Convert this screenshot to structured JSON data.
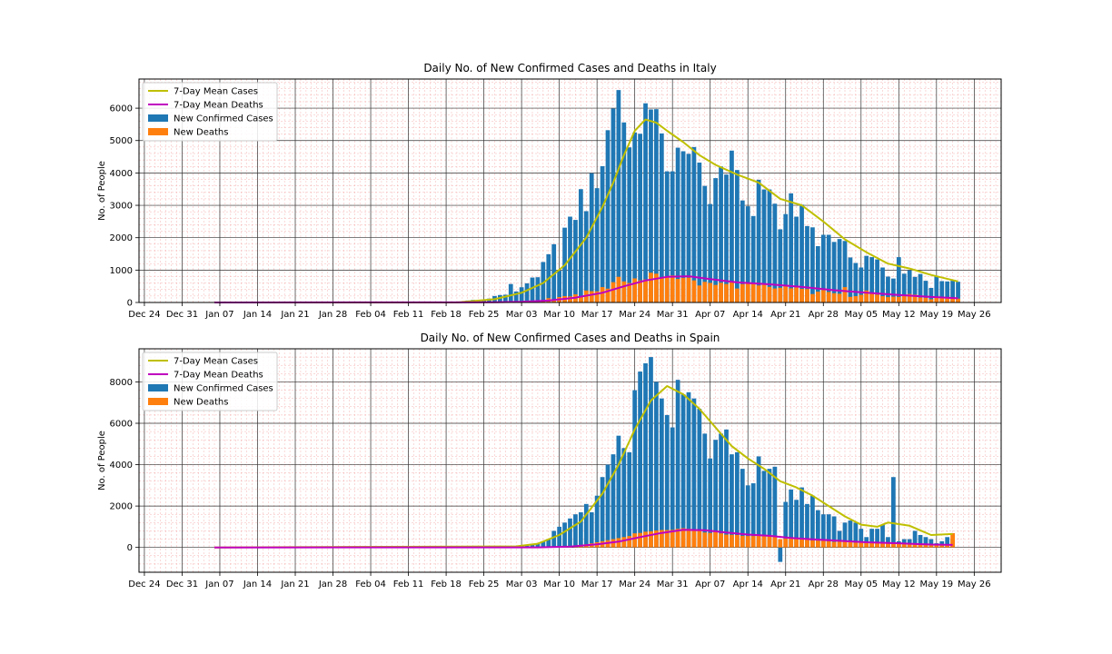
{
  "colors": {
    "cases_bar": "#1f77b4",
    "deaths_bar": "#ff7f0e",
    "mean_cases": "#bfbf00",
    "mean_deaths": "#bf00bf",
    "major_grid": "#333333",
    "minor_grid": "#f08080"
  },
  "chart_data": [
    {
      "type": "bar",
      "title": "Daily No. of New Confirmed Cases and Deaths in Italy",
      "xlabel": "",
      "ylabel": "No. of People",
      "xlim": [
        "2019-12-23",
        "2020-05-31"
      ],
      "ylim": [
        0,
        6900
      ],
      "y_ticks": [
        0,
        1000,
        2000,
        3000,
        4000,
        5000,
        6000
      ],
      "x_tick_labels": [
        "Dec 24",
        "Dec 31",
        "Jan 07",
        "Jan 14",
        "Jan 21",
        "Jan 28",
        "Feb 04",
        "Feb 11",
        "Feb 18",
        "Feb 25",
        "Mar 03",
        "Mar 10",
        "Mar 17",
        "Mar 24",
        "Mar 31",
        "Apr 07",
        "Apr 14",
        "Apr 21",
        "Apr 28",
        "May 05",
        "May 12",
        "May 19",
        "May 26"
      ],
      "grid": true,
      "legend_position": "top-left",
      "legend": [
        "7-Day Mean Cases",
        "7-Day Mean Deaths",
        "New Confirmed Cases",
        "New Deaths"
      ],
      "dates": [
        "2020-02-21",
        "2020-02-22",
        "2020-02-23",
        "2020-02-24",
        "2020-02-25",
        "2020-02-26",
        "2020-02-27",
        "2020-02-28",
        "2020-02-29",
        "2020-03-01",
        "2020-03-02",
        "2020-03-03",
        "2020-03-04",
        "2020-03-05",
        "2020-03-06",
        "2020-03-07",
        "2020-03-08",
        "2020-03-09",
        "2020-03-10",
        "2020-03-11",
        "2020-03-12",
        "2020-03-13",
        "2020-03-14",
        "2020-03-15",
        "2020-03-16",
        "2020-03-17",
        "2020-03-18",
        "2020-03-19",
        "2020-03-20",
        "2020-03-21",
        "2020-03-22",
        "2020-03-23",
        "2020-03-24",
        "2020-03-25",
        "2020-03-26",
        "2020-03-27",
        "2020-03-28",
        "2020-03-29",
        "2020-03-30",
        "2020-03-31",
        "2020-04-01",
        "2020-04-02",
        "2020-04-03",
        "2020-04-04",
        "2020-04-05",
        "2020-04-06",
        "2020-04-07",
        "2020-04-08",
        "2020-04-09",
        "2020-04-10",
        "2020-04-11",
        "2020-04-12",
        "2020-04-13",
        "2020-04-14",
        "2020-04-15",
        "2020-04-16",
        "2020-04-17",
        "2020-04-18",
        "2020-04-19",
        "2020-04-20",
        "2020-04-21",
        "2020-04-22",
        "2020-04-23",
        "2020-04-24",
        "2020-04-25",
        "2020-04-26",
        "2020-04-27",
        "2020-04-28",
        "2020-04-29",
        "2020-04-30",
        "2020-05-01",
        "2020-05-02",
        "2020-05-03",
        "2020-05-04",
        "2020-05-05",
        "2020-05-06",
        "2020-05-07",
        "2020-05-08",
        "2020-05-09",
        "2020-05-10",
        "2020-05-11",
        "2020-05-12",
        "2020-05-13",
        "2020-05-14",
        "2020-05-15",
        "2020-05-16",
        "2020-05-17",
        "2020-05-18",
        "2020-05-19",
        "2020-05-20",
        "2020-05-21",
        "2020-05-22",
        "2020-05-23"
      ],
      "new_cases": [
        20,
        60,
        80,
        60,
        90,
        120,
        200,
        230,
        240,
        570,
        340,
        470,
        590,
        770,
        780,
        1250,
        1490,
        1800,
        980,
        2310,
        2650,
        2550,
        3500,
        2820,
        3990,
        3530,
        4210,
        5320,
        5990,
        6560,
        5560,
        4790,
        5250,
        5210,
        6150,
        5960,
        5970,
        5220,
        4050,
        4050,
        4780,
        4670,
        4590,
        4800,
        4320,
        3600,
        3040,
        3840,
        4200,
        3950,
        4690,
        4090,
        3150,
        2970,
        2670,
        3790,
        3490,
        3490,
        3050,
        2260,
        2730,
        3370,
        2650,
        3020,
        2360,
        2320,
        1740,
        2090,
        2090,
        1870,
        1960,
        1900,
        1390,
        1220,
        1080,
        1440,
        1400,
        1330,
        1080,
        800,
        740,
        1400,
        890,
        990,
        790,
        880,
        670,
        450,
        810,
        660,
        650,
        670,
        640
      ],
      "new_deaths": [
        1,
        2,
        3,
        4,
        5,
        8,
        6,
        10,
        8,
        14,
        18,
        27,
        28,
        41,
        49,
        36,
        133,
        97,
        168,
        196,
        188,
        250,
        175,
        368,
        349,
        345,
        475,
        427,
        627,
        793,
        651,
        601,
        743,
        683,
        712,
        919,
        889,
        756,
        812,
        837,
        727,
        760,
        766,
        681,
        525,
        636,
        604,
        542,
        610,
        570,
        619,
        431,
        566,
        602,
        578,
        525,
        575,
        482,
        433,
        454,
        534,
        437,
        464,
        420,
        415,
        260,
        333,
        382,
        323,
        285,
        269,
        474,
        174,
        195,
        236,
        369,
        274,
        243,
        194,
        165,
        179,
        172,
        195,
        262,
        242,
        153,
        145,
        99,
        162,
        161,
        156,
        130,
        119
      ],
      "series": [
        {
          "name": "7-Day Mean Cases",
          "x": [
            "2020-01-06",
            "2020-02-20",
            "2020-02-27",
            "2020-03-03",
            "2020-03-07",
            "2020-03-11",
            "2020-03-15",
            "2020-03-18",
            "2020-03-20",
            "2020-03-22",
            "2020-03-24",
            "2020-03-26",
            "2020-03-28",
            "2020-03-30",
            "2020-04-02",
            "2020-04-05",
            "2020-04-08",
            "2020-04-12",
            "2020-04-16",
            "2020-04-20",
            "2020-04-24",
            "2020-04-28",
            "2020-05-02",
            "2020-05-06",
            "2020-05-10",
            "2020-05-14",
            "2020-05-18",
            "2020-05-23"
          ],
          "values": [
            0,
            0,
            100,
            300,
            600,
            1150,
            2000,
            2950,
            3700,
            4550,
            5300,
            5650,
            5550,
            5300,
            4950,
            4550,
            4250,
            3950,
            3700,
            3200,
            3000,
            2500,
            1950,
            1550,
            1200,
            1050,
            850,
            650
          ]
        },
        {
          "name": "7-Day Mean Deaths",
          "x": [
            "2020-01-06",
            "2020-02-27",
            "2020-03-03",
            "2020-03-08",
            "2020-03-13",
            "2020-03-18",
            "2020-03-22",
            "2020-03-26",
            "2020-03-30",
            "2020-04-03",
            "2020-04-07",
            "2020-04-12",
            "2020-04-18",
            "2020-04-24",
            "2020-04-30",
            "2020-05-06",
            "2020-05-12",
            "2020-05-18",
            "2020-05-23"
          ],
          "values": [
            0,
            5,
            20,
            60,
            150,
            300,
            500,
            680,
            790,
            810,
            720,
            620,
            560,
            480,
            380,
            300,
            230,
            170,
            130
          ]
        }
      ]
    },
    {
      "type": "bar",
      "title": "Daily No. of New Confirmed Cases and Deaths in Spain",
      "xlabel": "",
      "ylabel": "No. of People",
      "xlim": [
        "2019-12-23",
        "2020-05-31"
      ],
      "ylim": [
        -1200,
        9600
      ],
      "y_ticks": [
        0,
        2000,
        4000,
        6000,
        8000
      ],
      "x_tick_labels": [
        "Dec 24",
        "Dec 31",
        "Jan 07",
        "Jan 14",
        "Jan 21",
        "Jan 28",
        "Feb 04",
        "Feb 11",
        "Feb 18",
        "Feb 25",
        "Mar 03",
        "Mar 10",
        "Mar 17",
        "Mar 24",
        "Mar 31",
        "Apr 07",
        "Apr 14",
        "Apr 21",
        "Apr 28",
        "May 05",
        "May 12",
        "May 19",
        "May 26"
      ],
      "grid": true,
      "legend_position": "top-left",
      "legend": [
        "7-Day Mean Cases",
        "7-Day Mean Deaths",
        "New Confirmed Cases",
        "New Deaths"
      ],
      "dates": [
        "2020-03-02",
        "2020-03-03",
        "2020-03-04",
        "2020-03-05",
        "2020-03-06",
        "2020-03-07",
        "2020-03-08",
        "2020-03-09",
        "2020-03-10",
        "2020-03-11",
        "2020-03-12",
        "2020-03-13",
        "2020-03-14",
        "2020-03-15",
        "2020-03-16",
        "2020-03-17",
        "2020-03-18",
        "2020-03-19",
        "2020-03-20",
        "2020-03-21",
        "2020-03-22",
        "2020-03-23",
        "2020-03-24",
        "2020-03-25",
        "2020-03-26",
        "2020-03-27",
        "2020-03-28",
        "2020-03-29",
        "2020-03-30",
        "2020-03-31",
        "2020-04-01",
        "2020-04-02",
        "2020-04-03",
        "2020-04-04",
        "2020-04-05",
        "2020-04-06",
        "2020-04-07",
        "2020-04-08",
        "2020-04-09",
        "2020-04-10",
        "2020-04-11",
        "2020-04-12",
        "2020-04-13",
        "2020-04-14",
        "2020-04-15",
        "2020-04-16",
        "2020-04-17",
        "2020-04-18",
        "2020-04-19",
        "2020-04-20",
        "2020-04-21",
        "2020-04-22",
        "2020-04-23",
        "2020-04-24",
        "2020-04-25",
        "2020-04-26",
        "2020-04-27",
        "2020-04-28",
        "2020-04-29",
        "2020-04-30",
        "2020-05-01",
        "2020-05-02",
        "2020-05-03",
        "2020-05-04",
        "2020-05-05",
        "2020-05-06",
        "2020-05-07",
        "2020-05-08",
        "2020-05-09",
        "2020-05-10",
        "2020-05-11",
        "2020-05-12",
        "2020-05-13",
        "2020-05-14",
        "2020-05-15",
        "2020-05-16",
        "2020-05-17",
        "2020-05-18",
        "2020-05-19",
        "2020-05-20",
        "2020-05-21",
        "2020-05-22"
      ],
      "new_cases": [
        30,
        60,
        90,
        180,
        200,
        290,
        400,
        800,
        1000,
        1200,
        1400,
        1600,
        1700,
        2100,
        1700,
        2500,
        3400,
        4000,
        4500,
        5400,
        4800,
        4600,
        7600,
        8500,
        8900,
        9200,
        8000,
        7200,
        6400,
        5800,
        8100,
        7400,
        7500,
        7200,
        6700,
        5500,
        4300,
        5200,
        5500,
        5700,
        4500,
        4600,
        3800,
        3000,
        3100,
        4400,
        3700,
        3800,
        3900,
        -700,
        2200,
        2800,
        2300,
        2900,
        2100,
        2500,
        1800,
        1600,
        1600,
        1500,
        800,
        1200,
        1300,
        1200,
        900,
        500,
        900,
        900,
        1100,
        500,
        3400,
        300,
        400,
        400,
        800,
        600,
        500,
        400,
        200,
        300,
        500,
        400
      ],
      "new_deaths": [
        2,
        3,
        5,
        8,
        10,
        15,
        20,
        30,
        40,
        50,
        60,
        90,
        120,
        150,
        200,
        250,
        300,
        350,
        400,
        450,
        500,
        550,
        680,
        700,
        760,
        780,
        820,
        840,
        840,
        850,
        900,
        930,
        900,
        880,
        800,
        720,
        700,
        760,
        680,
        620,
        610,
        600,
        560,
        550,
        550,
        580,
        550,
        540,
        500,
        400,
        430,
        440,
        420,
        380,
        380,
        340,
        330,
        320,
        300,
        270,
        280,
        270,
        250,
        230,
        230,
        220,
        210,
        200,
        190,
        180,
        170,
        170,
        170,
        160,
        150,
        140,
        130,
        120,
        110,
        100,
        100,
        690
      ],
      "series": [
        {
          "name": "7-Day Mean Cases",
          "x": [
            "2020-01-06",
            "2020-03-02",
            "2020-03-06",
            "2020-03-10",
            "2020-03-14",
            "2020-03-18",
            "2020-03-21",
            "2020-03-24",
            "2020-03-27",
            "2020-03-30",
            "2020-04-02",
            "2020-04-05",
            "2020-04-08",
            "2020-04-11",
            "2020-04-14",
            "2020-04-17",
            "2020-04-20",
            "2020-04-23",
            "2020-04-26",
            "2020-04-29",
            "2020-05-02",
            "2020-05-05",
            "2020-05-08",
            "2020-05-10",
            "2020-05-14",
            "2020-05-18",
            "2020-05-22"
          ],
          "values": [
            0,
            50,
            180,
            600,
            1250,
            2600,
            4000,
            5700,
            7100,
            7800,
            7400,
            6700,
            5800,
            4900,
            4300,
            3800,
            3200,
            2900,
            2500,
            2000,
            1500,
            1100,
            1000,
            1200,
            1050,
            600,
            650
          ]
        },
        {
          "name": "7-Day Mean Deaths",
          "x": [
            "2020-01-06",
            "2020-03-06",
            "2020-03-12",
            "2020-03-17",
            "2020-03-21",
            "2020-03-25",
            "2020-03-29",
            "2020-04-02",
            "2020-04-06",
            "2020-04-10",
            "2020-04-14",
            "2020-04-18",
            "2020-04-22",
            "2020-04-26",
            "2020-05-01",
            "2020-05-06",
            "2020-05-12",
            "2020-05-18",
            "2020-05-22"
          ],
          "values": [
            0,
            5,
            40,
            150,
            280,
            500,
            700,
            850,
            830,
            720,
            620,
            560,
            460,
            390,
            320,
            250,
            200,
            140,
            120
          ]
        }
      ]
    }
  ]
}
